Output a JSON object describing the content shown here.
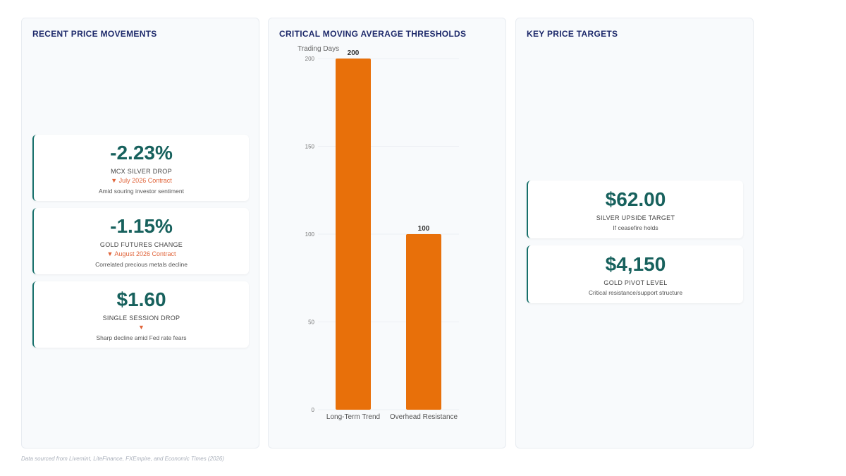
{
  "panels": {
    "left": {
      "title": "RECENT PRICE MOVEMENTS",
      "cards": [
        {
          "value": "-2.23%",
          "label": "MCX SILVER DROP",
          "sub": "▼ July 2026 Contract",
          "note": "Amid souring investor sentiment"
        },
        {
          "value": "-1.15%",
          "label": "GOLD FUTURES CHANGE",
          "sub": "▼ August 2026 Contract",
          "note": "Correlated precious metals decline"
        },
        {
          "value": "$1.60",
          "label": "SINGLE SESSION DROP",
          "sub": "▼",
          "note": "Sharp decline amid Fed rate fears"
        }
      ]
    },
    "middle": {
      "title": "CRITICAL MOVING AVERAGE THRESHOLDS"
    },
    "right": {
      "title": "KEY PRICE TARGETS",
      "cards": [
        {
          "value": "$62.00",
          "label": "SILVER UPSIDE TARGET",
          "note": "If ceasefire holds"
        },
        {
          "value": "$4,150",
          "label": "GOLD PIVOT LEVEL",
          "note": "Critical resistance/support structure"
        }
      ]
    }
  },
  "chart_data": {
    "type": "bar",
    "categories": [
      "Long-Term Trend",
      "Overhead Resistance"
    ],
    "values": [
      200,
      100
    ],
    "data_labels": [
      "200",
      "100"
    ],
    "ylabel": "Trading Days",
    "ylim": [
      0,
      200
    ],
    "yticks": [
      0,
      50,
      100,
      150,
      200
    ],
    "bar_color": "#e8700a",
    "grid": true,
    "legend": "none"
  },
  "footer": "Data sourced from Livemint, LiteFinance, FXEmpire, and Economic Times (2026)"
}
